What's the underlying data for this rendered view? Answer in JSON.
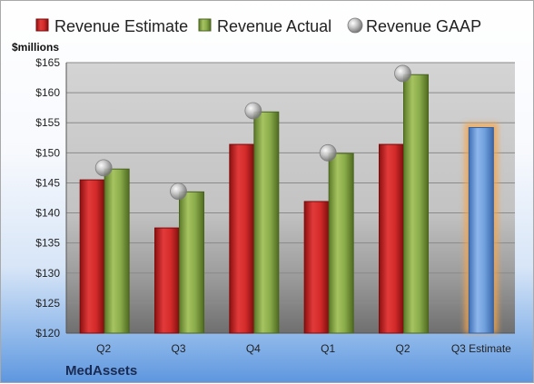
{
  "chart_data": {
    "type": "bar",
    "ylabel": "$millions",
    "company": "MedAssets",
    "categories": [
      "Q2",
      "Q3",
      "Q4",
      "Q1",
      "Q2",
      "Q3 Estimate"
    ],
    "ylim": [
      120,
      165
    ],
    "yticks": [
      "$120",
      "$125",
      "$130",
      "$135",
      "$140",
      "$145",
      "$150",
      "$155",
      "$160",
      "$165"
    ],
    "yticks_values": [
      120,
      125,
      130,
      135,
      140,
      145,
      150,
      155,
      160,
      165
    ],
    "grid": true,
    "legend_position": "top",
    "series": [
      {
        "name": "Revenue Estimate",
        "kind": "bar",
        "color": "#d42a2a",
        "values": [
          145.5,
          137.5,
          151.4,
          141.9,
          151.4,
          null
        ]
      },
      {
        "name": "Revenue Actual",
        "kind": "bar",
        "color": "#8aab4a",
        "values": [
          147.3,
          143.5,
          156.8,
          149.9,
          163.0,
          null
        ]
      },
      {
        "name": "Revenue GAAP",
        "kind": "marker",
        "color": "#b8b8b8",
        "values": [
          147.5,
          143.6,
          157.0,
          150.0,
          163.2,
          null
        ]
      },
      {
        "name": "",
        "kind": "bar",
        "color": "#6f9fdc",
        "highlight": "#f6a54a",
        "values": [
          null,
          null,
          null,
          null,
          null,
          154.2
        ]
      }
    ]
  }
}
